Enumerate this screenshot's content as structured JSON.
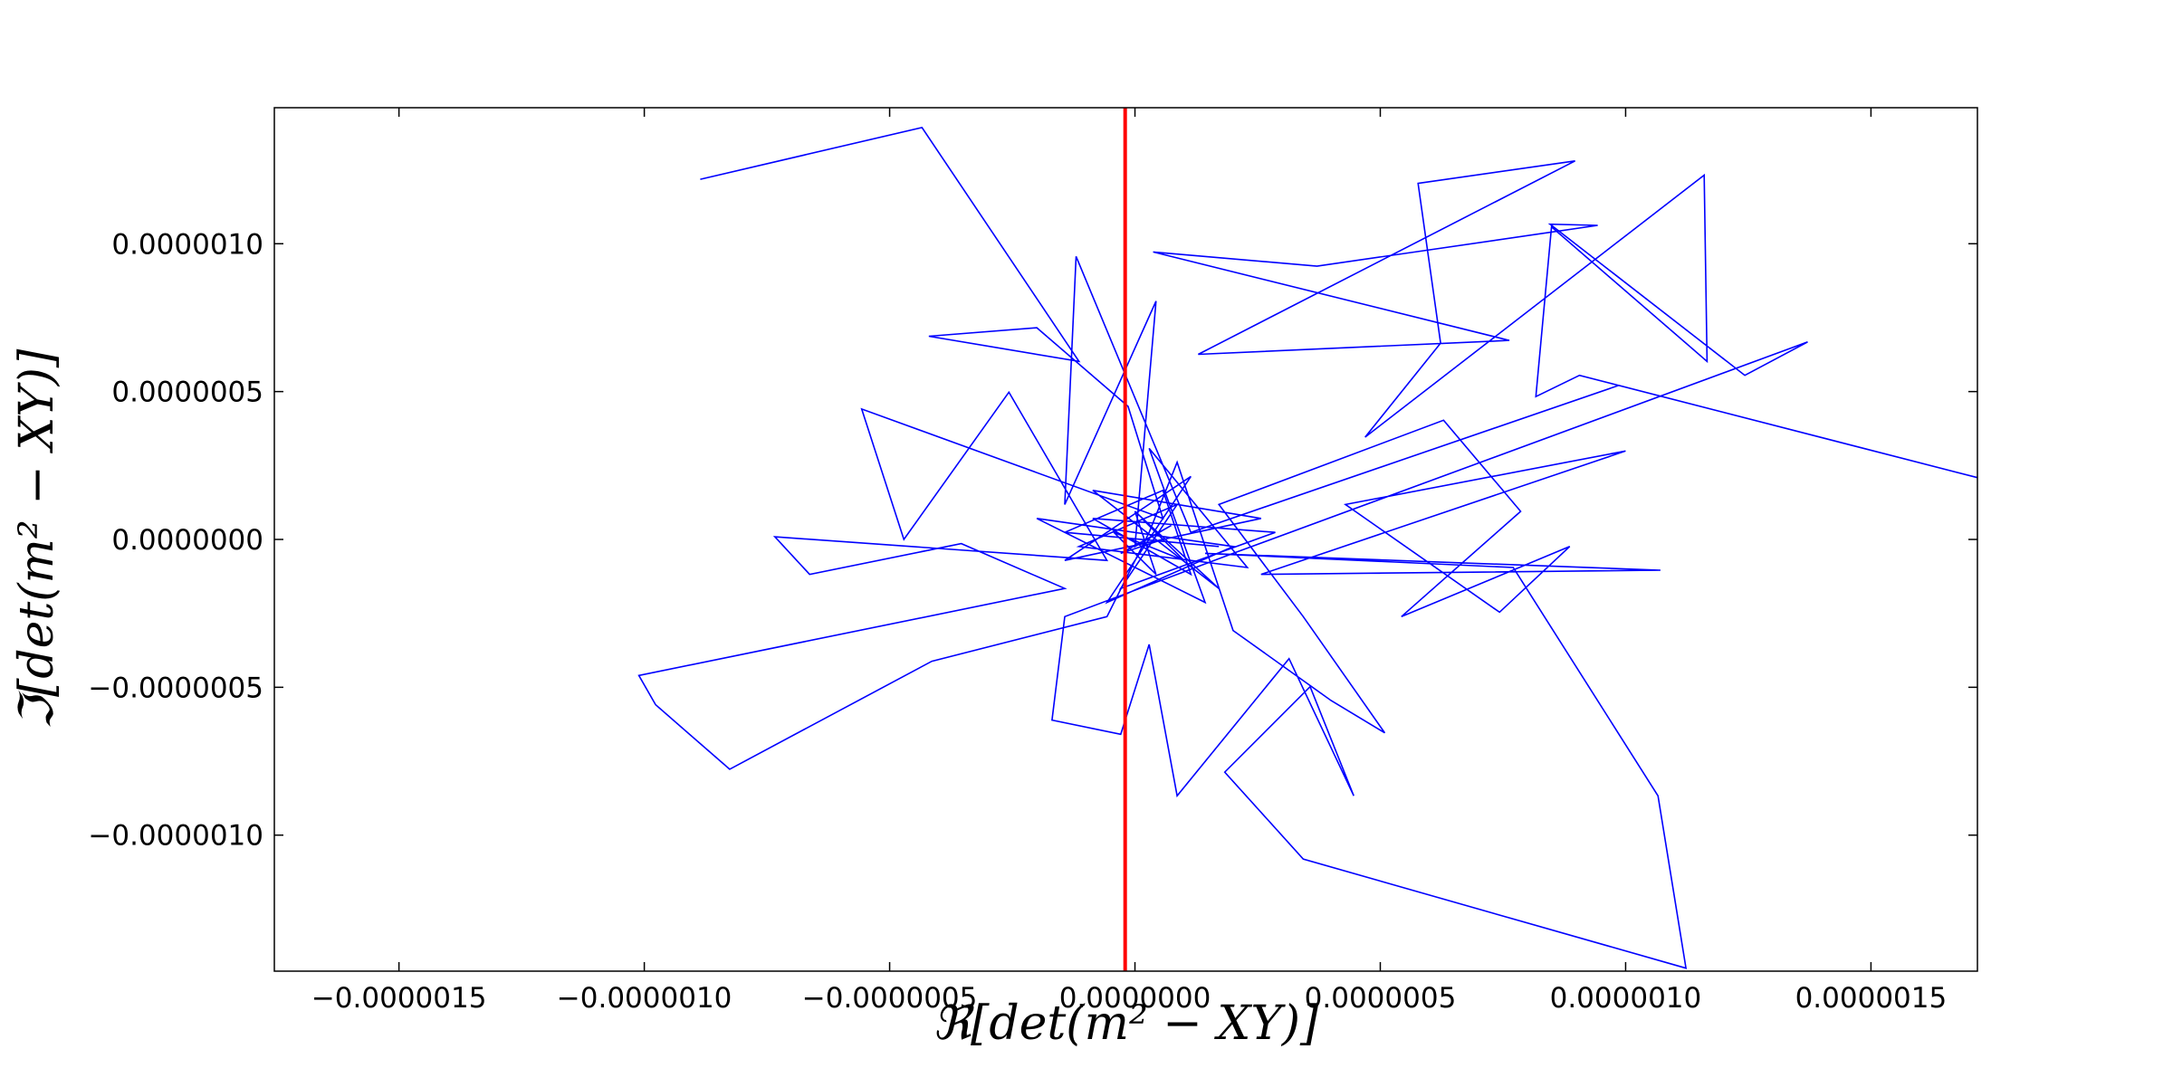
{
  "chart_data": {
    "type": "line",
    "xlabel": "ℜ[det(m² − XY)]",
    "ylabel": "ℑ[det(m² − XY)]",
    "xlim": [
      -1.754e-06,
      1.717e-06
    ],
    "ylim": [
      -1.46e-06,
      1.46e-06
    ],
    "xticks": [
      {
        "value": -1.5e-06,
        "label": "−0.0000015"
      },
      {
        "value": -1e-06,
        "label": "−0.0000010"
      },
      {
        "value": -5e-07,
        "label": "−0.0000005"
      },
      {
        "value": 0,
        "label": "0.0000000"
      },
      {
        "value": 5e-07,
        "label": "0.0000005"
      },
      {
        "value": 1e-06,
        "label": "0.0000010"
      },
      {
        "value": 1.5e-06,
        "label": "0.0000015"
      }
    ],
    "yticks": [
      {
        "value": -1e-06,
        "label": "−0.0000010"
      },
      {
        "value": -5e-07,
        "label": "−0.0000005"
      },
      {
        "value": 0,
        "label": "0.0000000"
      },
      {
        "value": 5e-07,
        "label": "0.0000005"
      },
      {
        "value": 1e-06,
        "label": "0.0000010"
      }
    ],
    "grid": false,
    "vline": {
      "x": -2e-08,
      "color": "#ff0000"
    },
    "series": [
      {
        "color": "#0000ff",
        "x": [
          -8.86e-07,
          -4.34e-07,
          -1.14e-07,
          -4.2e-07,
          -2e-07,
          -1.4e-08,
          5.7e-08,
          -5.57e-07,
          -4.71e-07,
          -2.57e-07,
          -5.7e-08,
          -7.34e-07,
          -6.63e-07,
          -3.54e-07,
          -1.43e-07,
          -1.011e-06,
          -9.77e-07,
          -8.26e-07,
          -4.14e-07,
          -5.7e-08,
          2.9e-08,
          8.6e-08,
          2e-07,
          4e-07,
          5.09e-07,
          3.43e-07,
          1.71e-07,
          6.29e-07,
          7.86e-07,
          5.43e-07,
          8.86e-07,
          7.43e-07,
          4.29e-07,
          1e-06,
          2.57e-07,
          1.071e-06,
          1.43e-07,
          7.71e-07,
          1.066e-06,
          1.123e-06,
          3.43e-07,
          1.83e-07,
          3.57e-07,
          4.46e-07,
          3.14e-07,
          8.6e-08,
          2.9e-08,
          -2.9e-08,
          -1.69e-07,
          -1.43e-07,
          2e-07,
          1.371e-06,
          1.243e-06,
          8.46e-07,
          9.43e-07,
          3.71e-07,
          3.7e-08,
          7.63e-07,
          1.29e-07,
          8.97e-07,
          5.77e-07,
          6.23e-07,
          4.69e-07,
          1.16e-06,
          1.166e-06,
          8.49e-07,
          8.17e-07,
          9.06e-07,
          1.717e-06,
          9.86e-07,
          1.14e-07,
          -1.2e-07,
          -1.43e-07,
          4.3e-08,
          0,
          7.4e-08,
          -2.9e-08,
          5.7e-08,
          1.4e-08,
          1e-07,
          -4.3e-08,
          4.3e-08,
          0,
          1.71e-07,
          -8.6e-08,
          2.57e-07,
          -1.43e-07,
          1.14e-07,
          -5.7e-08,
          2e-07,
          -2e-07,
          1.43e-07,
          2.9e-08,
          2.29e-07,
          -1.14e-07,
          8.6e-08,
          -2.9e-08,
          2.86e-07,
          -8.6e-08,
          1.14e-07,
          5.7e-08,
          -1.43e-07,
          1.71e-07
        ],
        "values": [
          1.218e-06,
          1.393e-06,
          6.02e-07,
          6.87e-07,
          7.16e-07,
          4.5e-07,
          7.1e-08,
          4.41e-07,
          0,
          4.98e-07,
          -7.1e-08,
          9e-09,
          -1.18e-07,
          -1.4e-08,
          -1.66e-07,
          -4.6e-07,
          -5.59e-07,
          -7.77e-07,
          -4.12e-07,
          -2.61e-07,
          2.4e-08,
          2.61e-07,
          -3.08e-07,
          -5.45e-07,
          -6.54e-07,
          -2.61e-07,
          1.18e-07,
          4.03e-07,
          9.5e-08,
          -2.61e-07,
          -2.4e-08,
          -2.46e-07,
          1.18e-07,
          2.99e-07,
          -1.18e-07,
          -1.04e-07,
          -4.7e-08,
          -9.5e-08,
          -8.67e-07,
          -1.45e-06,
          -1.081e-06,
          -7.87e-07,
          -4.98e-07,
          -8.67e-07,
          -4.03e-07,
          -8.67e-07,
          -3.55e-07,
          -6.59e-07,
          -6.11e-07,
          -2.61e-07,
          -4.7e-08,
          6.68e-07,
          5.55e-07,
          1.066e-06,
          1.062e-06,
          9.24e-07,
          9.72e-07,
          6.73e-07,
          6.26e-07,
          1.28e-06,
          1.204e-06,
          6.64e-07,
          3.46e-07,
          1.232e-06,
          6.02e-07,
          1.057e-06,
          4.83e-07,
          5.55e-07,
          2.09e-07,
          5.21e-07,
          2.4e-08,
          9.57e-07,
          1.18e-07,
          8.06e-07,
          -2.4e-08,
          4.7e-08,
          -4.7e-08,
          0,
          7.1e-08,
          -7.1e-08,
          2.4e-08,
          -1.18e-07,
          9.5e-08,
          -1.66e-07,
          1.66e-07,
          7.1e-08,
          -7.1e-08,
          2.13e-07,
          -2.13e-07,
          -2.4e-08,
          7.1e-08,
          -2.13e-07,
          3.08e-07,
          -9.5e-08,
          -2.4e-08,
          1.18e-07,
          -1.66e-07,
          2.4e-08,
          7.1e-08,
          -1.18e-07,
          1.66e-07,
          2.4e-08,
          -2.4e-08
        ]
      }
    ]
  }
}
